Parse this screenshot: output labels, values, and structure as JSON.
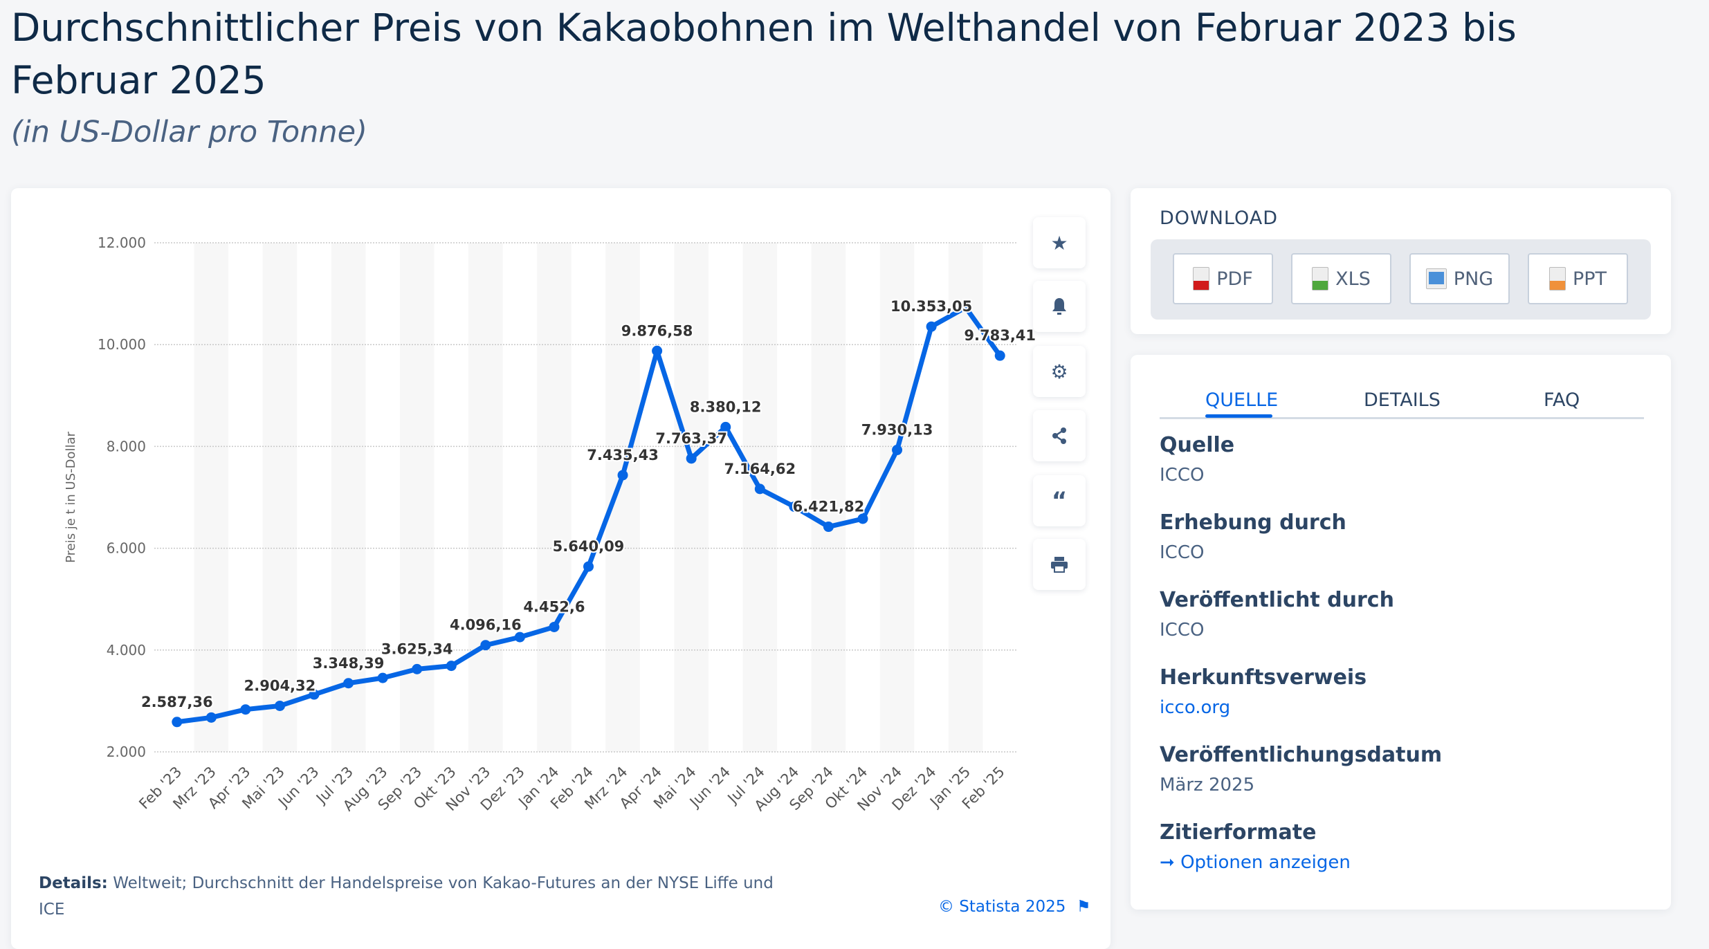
{
  "header": {
    "title": "Durchschnittlicher Preis von Kakaobohnen im Welthandel von Februar 2023 bis Februar 2025",
    "subtitle": "(in US-Dollar pro Tonne)"
  },
  "chart_data": {
    "type": "line",
    "ylabel": "Preis je t in US-Dollar",
    "xlabel": "",
    "ylim": [
      2000,
      12000
    ],
    "yticks": [
      "2.000",
      "4.000",
      "6.000",
      "8.000",
      "10.000",
      "12.000"
    ],
    "ytick_values": [
      2000,
      4000,
      6000,
      8000,
      10000,
      12000
    ],
    "grid": true,
    "color": "#0666e5",
    "categories": [
      "Feb '23",
      "Mrz '23",
      "Apr '23",
      "Mai '23",
      "Jun '23",
      "Jul '23",
      "Aug '23",
      "Sep '23",
      "Okt '23",
      "Nov '23",
      "Dez '23",
      "Jan '24",
      "Feb '24",
      "Mrz '24",
      "Apr '24",
      "Mai '24",
      "Jun '24",
      "Jul '24",
      "Aug '24",
      "Sep '24",
      "Okt '24",
      "Nov '24",
      "Dez '24",
      "Jan '25",
      "Feb '25"
    ],
    "values": [
      2587.36,
      2675,
      2833,
      2904.32,
      3127,
      3348.39,
      3452,
      3625.34,
      3690,
      4096.16,
      4254,
      4452.6,
      5640.09,
      7435.43,
      9876.58,
      7763.37,
      8380.12,
      7164.62,
      6817,
      6421.82,
      6579,
      7930.13,
      10353.05,
      10730,
      9783.41
    ],
    "data_labels": [
      "2.587,36",
      "",
      "",
      "2.904,32",
      "",
      "3.348,39",
      "",
      "3.625,34",
      "",
      "4.096,16",
      "",
      "4.452,6",
      "5.640,09",
      "7.435,43",
      "9.876,58",
      "7.763,37",
      "8.380,12",
      "7.164,62",
      "",
      "6.421,82",
      "",
      "7.930,13",
      "10.353,05",
      "",
      "9.783,41"
    ]
  },
  "chart_footer": {
    "details_label": "Details:",
    "details_text": "Weltweit; Durchschnitt der Handelspreise von Kakao-Futures an der NYSE Liffe und ICE",
    "copyright": "© Statista 2025"
  },
  "side_buttons": [
    {
      "icon": "star-icon"
    },
    {
      "icon": "bell-icon"
    },
    {
      "icon": "gear-icon"
    },
    {
      "icon": "share-icon"
    },
    {
      "icon": "quote-icon"
    },
    {
      "icon": "print-icon"
    }
  ],
  "download": {
    "title": "DOWNLOAD",
    "buttons": [
      {
        "label": "PDF",
        "color": "#d11a1a"
      },
      {
        "label": "XLS",
        "color": "#4fa83d"
      },
      {
        "label": "PNG",
        "color": "#4a90d9"
      },
      {
        "label": "PPT",
        "color": "#f0913a"
      }
    ]
  },
  "info": {
    "tabs": [
      "QUELLE",
      "DETAILS",
      "FAQ"
    ],
    "active_tab": "QUELLE",
    "entries": [
      {
        "heading": "Quelle",
        "value": "ICCO"
      },
      {
        "heading": "Erhebung durch",
        "value": "ICCO"
      },
      {
        "heading": "Veröffentlicht durch",
        "value": "ICCO"
      },
      {
        "heading": "Herkunftsverweis",
        "value": "icco.org"
      },
      {
        "heading": "Veröffentlichungsdatum",
        "value": "März 2025"
      },
      {
        "heading": "Zitierformate",
        "value": "Optionen anzeigen"
      }
    ]
  }
}
